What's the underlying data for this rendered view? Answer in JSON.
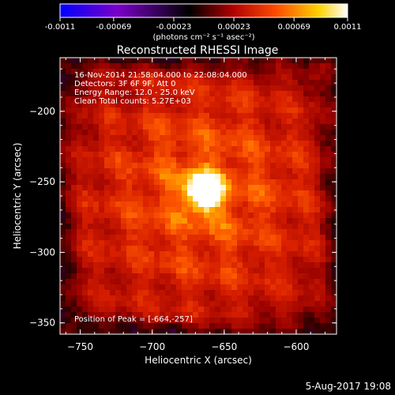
{
  "colorbar": {
    "tick_labels": [
      "-0.0011",
      "-0.00069",
      "-0.00023",
      "0.00023",
      "0.00069",
      "0.0011"
    ],
    "tick_values": [
      -0.0011,
      -0.00069,
      -0.00023,
      0.00023,
      0.00069,
      0.0011
    ],
    "range": [
      -0.0011,
      0.0011
    ],
    "units_label": "(photons cm⁻² s⁻¹ asec⁻²)",
    "colors": [
      "#0000ff",
      "#7a00c8",
      "#000000",
      "#b00000",
      "#ff4a00",
      "#ffd200",
      "#ffffff"
    ]
  },
  "chart_data": {
    "type": "heatmap",
    "title": "Reconstructed RHESSI Image",
    "xlabel": "Heliocentric X (arcsec)",
    "ylabel": "Heliocentric Y (arcsec)",
    "xlim": [
      -764,
      -572
    ],
    "ylim": [
      -358,
      -162
    ],
    "x_ticks": [
      -750,
      -700,
      -650,
      -600
    ],
    "x_tick_labels": [
      "−750",
      "−700",
      "−650",
      "−600"
    ],
    "y_ticks": [
      -200,
      -250,
      -300,
      -350
    ],
    "y_tick_labels": [
      "−200",
      "−250",
      "−300",
      "−350"
    ],
    "peak": {
      "x": -664,
      "y": -257
    },
    "annotations": [
      "16-Nov-2014 21:58:04.000 to 22:08:04.000",
      "Detectors: 3F 6F 9F, Att 0",
      "Energy Range: 12.0 - 25.0 keV",
      "Clean    Total counts: 5.27E+03"
    ],
    "peak_label": "Position of Peak = [-664,-257]"
  },
  "footer": {
    "timestamp": "5-Aug-2017 19:08"
  }
}
